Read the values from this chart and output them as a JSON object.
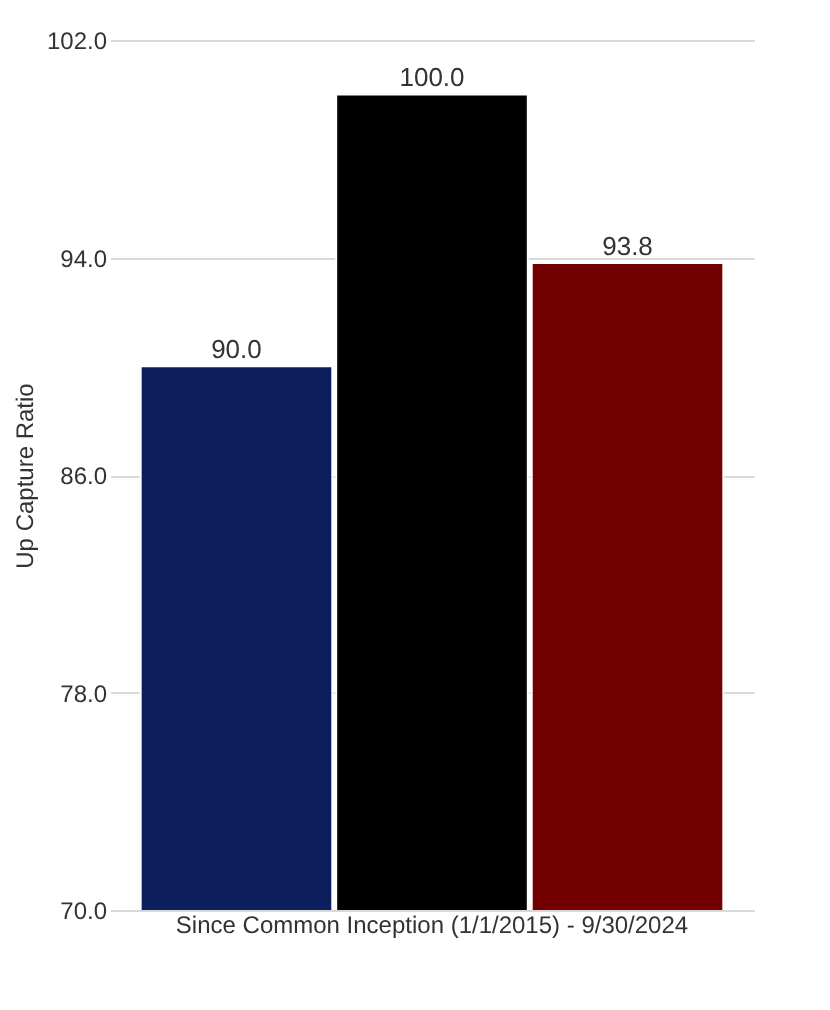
{
  "chart_data": {
    "type": "bar",
    "ylabel": "Up Capture Ratio",
    "categories": [
      "Since Common Inception (1/1/2015) - 9/30/2024"
    ],
    "series": [
      {
        "color": "#0c1f5c",
        "values": [
          90.0
        ],
        "value_labels": [
          "90.0"
        ]
      },
      {
        "color": "#000000",
        "values": [
          100.0
        ],
        "value_labels": [
          "100.0"
        ]
      },
      {
        "color": "#730000",
        "values": [
          93.8
        ],
        "value_labels": [
          "93.8"
        ]
      }
    ],
    "ylim": [
      70,
      102
    ],
    "yticks": [
      {
        "value": 70,
        "label": "70.0"
      },
      {
        "value": 78,
        "label": "78.0"
      },
      {
        "value": 86,
        "label": "86.0"
      },
      {
        "value": 94,
        "label": "94.0"
      },
      {
        "value": 102,
        "label": "102.0"
      }
    ],
    "grid": "y"
  }
}
